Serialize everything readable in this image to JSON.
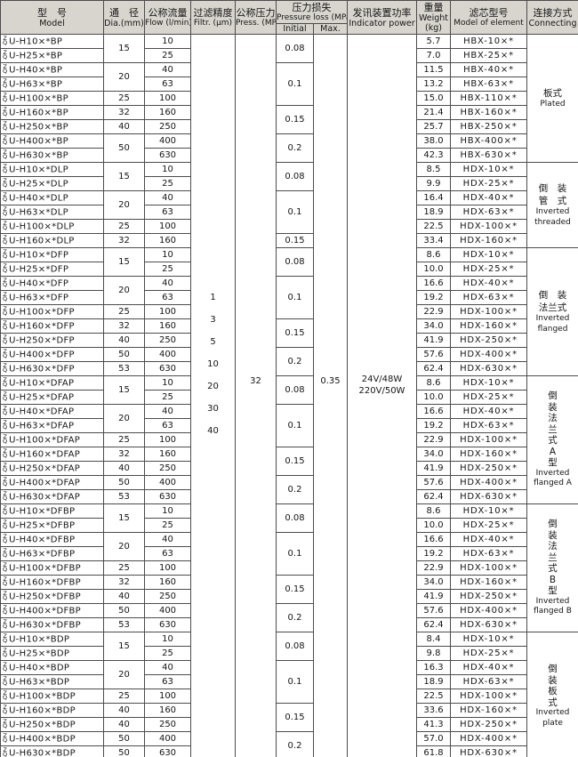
{
  "header": {
    "model_zh": "型　号",
    "model_en": "Model",
    "dia_zh": "通　径",
    "dia_en": "Dia.(mm)",
    "flow_zh": "公称流量",
    "flow_en": "Flow (l/min)",
    "filtr_zh": "过滤精度",
    "filtr_en": "Filtr. (μm)",
    "press_zh": "公称压力",
    "press_en": "Press. (MPa)",
    "ploss_zh": "压力损失",
    "ploss_en": "Pressure loss (MPa)",
    "initial": "Initial",
    "max": "Max.",
    "indicator_zh": "发讯装置功率",
    "indicator_en": "Indicator power",
    "weight_zh": "重量",
    "weight_en": "Weight",
    "weight_unit": "(kg)",
    "element_zh": "滤芯型号",
    "element_en": "Model of element",
    "connecting_zh": "连接方式",
    "connecting_en": "Connecting"
  },
  "model_prefix": {
    "top": "Z",
    "bottom": "Q"
  },
  "shared": {
    "filtration_um": [
      "1",
      "3",
      "5",
      "10",
      "20",
      "30",
      "40"
    ],
    "nominal_pressure": "32",
    "max_pressure_loss": "0.35",
    "indicator_power": [
      "24V/48W",
      "220V/50W"
    ]
  },
  "rows": [
    {
      "model": "U-H10×*BP",
      "dia": "15",
      "dia_rs": 2,
      "flow": "10",
      "init": "0.08",
      "init_rs": 2,
      "weight": "5.7",
      "element": "HBX-10×*",
      "conn": {
        "rs": 9,
        "zh": [
          "板式"
        ],
        "en": [
          "Plated"
        ]
      }
    },
    {
      "model": "U-H25×*BP",
      "flow": "25",
      "weight": "7.0",
      "element": "HBX-25×*"
    },
    {
      "model": "U-H40×*BP",
      "dia": "20",
      "dia_rs": 2,
      "flow": "40",
      "init": "0.1",
      "init_rs": 3,
      "weight": "11.5",
      "element": "HBX-40×*"
    },
    {
      "model": "U-H63×*BP",
      "flow": "63",
      "weight": "13.2",
      "element": "HBX-63×*"
    },
    {
      "model": "U-H100×*BP",
      "dia": "25",
      "flow": "100",
      "weight": "15.0",
      "element": "HBX-110×*"
    },
    {
      "model": "U-H160×*BP",
      "dia": "32",
      "flow": "160",
      "init": "0.15",
      "init_rs": 2,
      "weight": "21.4",
      "element": "HBX-160×*"
    },
    {
      "model": "U-H250×*BP",
      "dia": "40",
      "flow": "250",
      "weight": "25.7",
      "element": "HBX-250×*"
    },
    {
      "model": "U-H400×*BP",
      "dia": "50",
      "dia_rs": 2,
      "flow": "400",
      "init": "0.2",
      "init_rs": 2,
      "weight": "38.0",
      "element": "HBX-400×*"
    },
    {
      "model": "U-H630×*BP",
      "flow": "630",
      "weight": "42.3",
      "element": "HBX-630×*"
    },
    {
      "model": "U-H10×*DLP",
      "dia": "15",
      "dia_rs": 2,
      "flow": "10",
      "init": "0.08",
      "init_rs": 2,
      "weight": "8.5",
      "element": "HDX-10×*",
      "conn": {
        "rs": 6,
        "zh": [
          "倒　装",
          "管　式"
        ],
        "en": [
          "Inverted",
          "threaded"
        ]
      }
    },
    {
      "model": "U-H25×*DLP",
      "flow": "25",
      "weight": "9.9",
      "element": "HDX-25×*"
    },
    {
      "model": "U-H40×*DLP",
      "dia": "20",
      "dia_rs": 2,
      "flow": "40",
      "init": "0.1",
      "init_rs": 3,
      "weight": "16.4",
      "element": "HDX-40×*"
    },
    {
      "model": "U-H63×*DLP",
      "flow": "63",
      "weight": "18.9",
      "element": "HDX-63×*"
    },
    {
      "model": "U-H100×*DLP",
      "dia": "25",
      "flow": "100",
      "weight": "22.5",
      "element": "HDX-100×*"
    },
    {
      "model": "U-H160×*DLP",
      "dia": "32",
      "flow": "160",
      "init": "0.15",
      "init_rs": 1,
      "weight": "33.4",
      "element": "HDX-160×*"
    },
    {
      "model": "U-H10×*DFP",
      "dia": "15",
      "dia_rs": 2,
      "flow": "10",
      "init": "0.08",
      "init_rs": 2,
      "weight": "8.6",
      "element": "HDX-10×*",
      "conn": {
        "rs": 9,
        "zh": [
          "倒　装",
          "法兰式"
        ],
        "en": [
          "Inverted",
          "flanged"
        ]
      }
    },
    {
      "model": "U-H25×*DFP",
      "flow": "25",
      "weight": "10.0",
      "element": "HDX-25×*"
    },
    {
      "model": "U-H40×*DFP",
      "dia": "20",
      "dia_rs": 2,
      "flow": "40",
      "init": "0.1",
      "init_rs": 3,
      "weight": "16.6",
      "element": "HDX-40×*"
    },
    {
      "model": "U-H63×*DFP",
      "flow": "63",
      "weight": "19.2",
      "element": "HDX-63×*"
    },
    {
      "model": "U-H100×*DFP",
      "dia": "25",
      "flow": "100",
      "weight": "22.9",
      "element": "HDX-100×*"
    },
    {
      "model": "U-H160×*DFP",
      "dia": "32",
      "flow": "160",
      "init": "0.15",
      "init_rs": 2,
      "weight": "34.0",
      "element": "HDX-160×*"
    },
    {
      "model": "U-H250×*DFP",
      "dia": "40",
      "flow": "250",
      "weight": "41.9",
      "element": "HDX-250×*"
    },
    {
      "model": "U-H400×*DFP",
      "dia": "50",
      "flow": "400",
      "init": "0.2",
      "init_rs": 2,
      "weight": "57.6",
      "element": "HDX-400×*"
    },
    {
      "model": "U-H630×*DFP",
      "dia": "53",
      "flow": "630",
      "weight": "62.4",
      "element": "HDX-630×*"
    },
    {
      "model": "U-H10×*DFAP",
      "dia": "15",
      "dia_rs": 2,
      "flow": "10",
      "init": "0.08",
      "init_rs": 2,
      "weight": "8.6",
      "element": "HDX-10×*",
      "conn": {
        "rs": 9,
        "zh": [
          "倒",
          "装",
          "法",
          "兰",
          "式",
          "A",
          "型"
        ],
        "en": [
          "Inverted",
          "flanged A"
        ]
      }
    },
    {
      "model": "U-H25×*DFAP",
      "flow": "25",
      "weight": "10.0",
      "element": "HDX-25×*"
    },
    {
      "model": "U-H40×*DFAP",
      "dia": "20",
      "dia_rs": 2,
      "flow": "40",
      "init": "0.1",
      "init_rs": 3,
      "weight": "16.6",
      "element": "HDX-40×*"
    },
    {
      "model": "U-H63×*DFAP",
      "flow": "63",
      "weight": "19.2",
      "element": "HDX-63×*"
    },
    {
      "model": "U-H100×*DFAP",
      "dia": "25",
      "flow": "100",
      "weight": "22.9",
      "element": "HDX-100×*"
    },
    {
      "model": "U-H160×*DFAP",
      "dia": "32",
      "flow": "160",
      "init": "0.15",
      "init_rs": 2,
      "weight": "34.0",
      "element": "HDX-160×*"
    },
    {
      "model": "U-H250×*DFAP",
      "dia": "40",
      "flow": "250",
      "weight": "41.9",
      "element": "HDX-250×*"
    },
    {
      "model": "U-H400×*DFAP",
      "dia": "50",
      "flow": "400",
      "init": "0.2",
      "init_rs": 2,
      "weight": "57.6",
      "element": "HDX-400×*"
    },
    {
      "model": "U-H630×*DFAP",
      "dia": "53",
      "flow": "630",
      "weight": "62.4",
      "element": "HDX-630×*"
    },
    {
      "model": "U-H10×*DFBP",
      "dia": "15",
      "dia_rs": 2,
      "flow": "10",
      "init": "0.08",
      "init_rs": 2,
      "weight": "8.6",
      "element": "HDX-10×*",
      "conn": {
        "rs": 9,
        "zh": [
          "倒",
          "装",
          "法",
          "兰",
          "式",
          "B",
          "型"
        ],
        "en": [
          "Inverted",
          "flanged B"
        ]
      }
    },
    {
      "model": "U-H25×*DFBP",
      "flow": "25",
      "weight": "10.0",
      "element": "HDX-25×*"
    },
    {
      "model": "U-H40×*DFBP",
      "dia": "20",
      "dia_rs": 2,
      "flow": "40",
      "init": "0.1",
      "init_rs": 3,
      "weight": "16.6",
      "element": "HDX-40×*"
    },
    {
      "model": "U-H63×*DFBP",
      "flow": "63",
      "weight": "19.2",
      "element": "HDX-63×*"
    },
    {
      "model": "U-H100×*DFBP",
      "dia": "25",
      "flow": "100",
      "weight": "22.9",
      "element": "HDX-100×*"
    },
    {
      "model": "U-H160×*DFBP",
      "dia": "32",
      "flow": "160",
      "init": "0.15",
      "init_rs": 2,
      "weight": "34.0",
      "element": "HDX-160×*"
    },
    {
      "model": "U-H250×*DFBP",
      "dia": "40",
      "flow": "250",
      "weight": "41.9",
      "element": "HDX-250×*"
    },
    {
      "model": "U-H400×*DFBP",
      "dia": "50",
      "flow": "400",
      "init": "0.2",
      "init_rs": 2,
      "weight": "57.6",
      "element": "HDX-400×*"
    },
    {
      "model": "U-H630×*DFBP",
      "dia": "53",
      "flow": "630",
      "weight": "62.4",
      "element": "HDX-630×*"
    },
    {
      "model": "U-H10×*BDP",
      "dia": "15",
      "dia_rs": 2,
      "flow": "10",
      "init": "0.08",
      "init_rs": 2,
      "weight": "8.4",
      "element": "HDX-10×*",
      "conn": {
        "rs": 9,
        "zh": [
          "倒",
          "装",
          "板",
          "式"
        ],
        "en": [
          "Inverted",
          "plate"
        ]
      }
    },
    {
      "model": "U-H25×*BDP",
      "flow": "25",
      "weight": "9.8",
      "element": "HDX-25×*"
    },
    {
      "model": "U-H40×*BDP",
      "dia": "20",
      "dia_rs": 2,
      "flow": "40",
      "init": "0.1",
      "init_rs": 3,
      "weight": "16.3",
      "element": "HDX-40×*"
    },
    {
      "model": "U-H63×*BDP",
      "flow": "63",
      "weight": "18.9",
      "element": "HDX-63×*"
    },
    {
      "model": "U-H100×*BDP",
      "dia": "25",
      "flow": "100",
      "weight": "22.5",
      "element": "HDX-100×*"
    },
    {
      "model": "U-H160×*BDP",
      "dia": "40",
      "flow": "160",
      "init": "0.15",
      "init_rs": 2,
      "weight": "33.6",
      "element": "HDX-160×*"
    },
    {
      "model": "U-H250×*BDP",
      "dia": "40",
      "flow": "250",
      "weight": "41.3",
      "element": "HDX-250×*"
    },
    {
      "model": "U-H400×*BDP",
      "dia": "50",
      "flow": "400",
      "init": "0.2",
      "init_rs": 2,
      "weight": "57.0",
      "element": "HDX-400×*"
    },
    {
      "model": "U-H630×*BDP",
      "dia": "50",
      "flow": "630",
      "weight": "61.8",
      "element": "HDX-630×*"
    }
  ]
}
